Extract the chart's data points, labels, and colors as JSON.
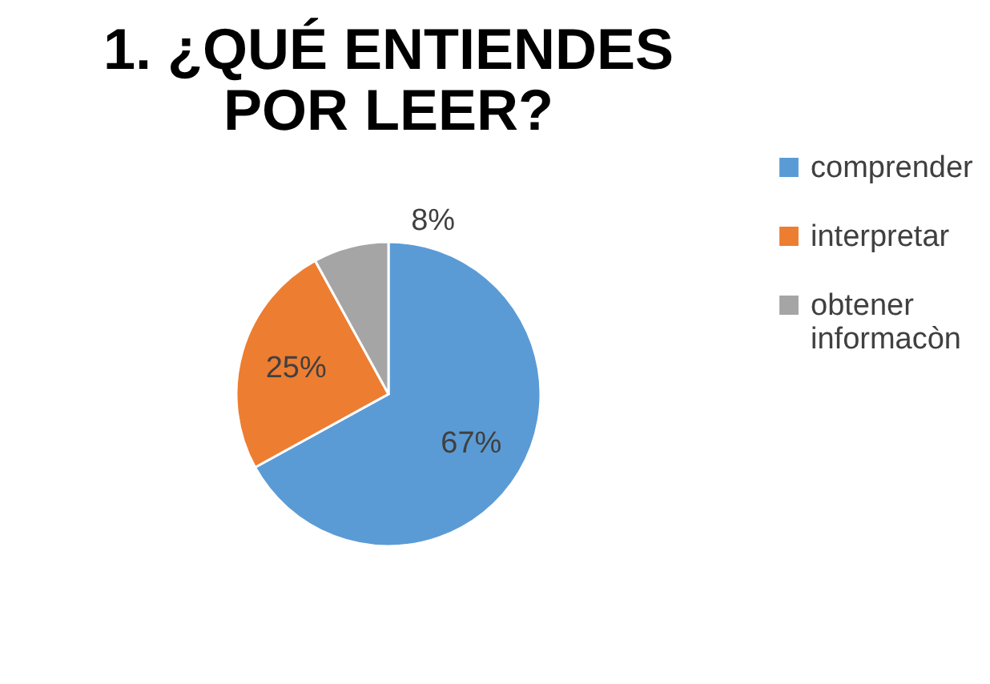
{
  "chart_data": {
    "type": "pie",
    "title": [
      "1. ¿QUÉ ENTIENDES",
      "POR LEER?"
    ],
    "categories": [
      "comprender",
      "interpretar",
      "obtener informacòn"
    ],
    "values": [
      67,
      25,
      8
    ],
    "colors": [
      "#5b9bd5",
      "#ed7d31",
      "#a5a5a5"
    ],
    "value_labels": [
      "67%",
      "25%",
      "8%"
    ],
    "legend": "right"
  }
}
